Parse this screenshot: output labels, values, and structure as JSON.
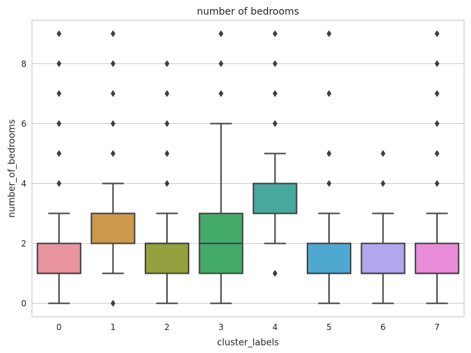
{
  "chart_data": {
    "type": "box",
    "title": "number of bedrooms",
    "xlabel": "cluster_labels",
    "ylabel": "number_of_bedrooms",
    "ylim": [
      -0.45,
      9.45
    ],
    "yticks": [
      0,
      2,
      4,
      6,
      8
    ],
    "grid": "horizontal",
    "categories": [
      "0",
      "1",
      "2",
      "3",
      "4",
      "5",
      "6",
      "7"
    ],
    "boxes": [
      {
        "category": "0",
        "whisker_low": 0,
        "q1": 1,
        "median": 1,
        "q3": 2,
        "whisker_high": 3,
        "outliers": [
          4,
          5,
          6,
          7,
          8,
          9
        ],
        "color": "#e8939e"
      },
      {
        "category": "1",
        "whisker_low": 1,
        "q1": 2,
        "median": 3,
        "q3": 3,
        "whisker_high": 4,
        "outliers": [
          0,
          5,
          6,
          7,
          8,
          9
        ],
        "color": "#cc9a4a"
      },
      {
        "category": "2",
        "whisker_low": 0,
        "q1": 1,
        "median": 2,
        "q3": 2,
        "whisker_high": 3,
        "outliers": [
          4,
          5,
          6,
          7,
          8
        ],
        "color": "#94a13e"
      },
      {
        "category": "3",
        "whisker_low": 0,
        "q1": 1,
        "median": 2,
        "q3": 3,
        "whisker_high": 6,
        "outliers": [
          7,
          8,
          9
        ],
        "color": "#44ab6b"
      },
      {
        "category": "4",
        "whisker_low": 2,
        "q1": 3,
        "median": 3,
        "q3": 4,
        "whisker_high": 5,
        "outliers": [
          1,
          6,
          7,
          8,
          9
        ],
        "color": "#47a89e"
      },
      {
        "category": "5",
        "whisker_low": 0,
        "q1": 1,
        "median": 1,
        "q3": 2,
        "whisker_high": 3,
        "outliers": [
          4,
          5,
          7,
          9
        ],
        "color": "#4fa8d0"
      },
      {
        "category": "6",
        "whisker_low": 0,
        "q1": 1,
        "median": 1,
        "q3": 2,
        "whisker_high": 3,
        "outliers": [
          4,
          5
        ],
        "color": "#b3a6ec"
      },
      {
        "category": "7",
        "whisker_low": 0,
        "q1": 1,
        "median": 1,
        "q3": 2,
        "whisker_high": 3,
        "outliers": [
          4,
          5,
          6,
          7,
          8,
          9
        ],
        "color": "#e98bd8"
      }
    ]
  }
}
